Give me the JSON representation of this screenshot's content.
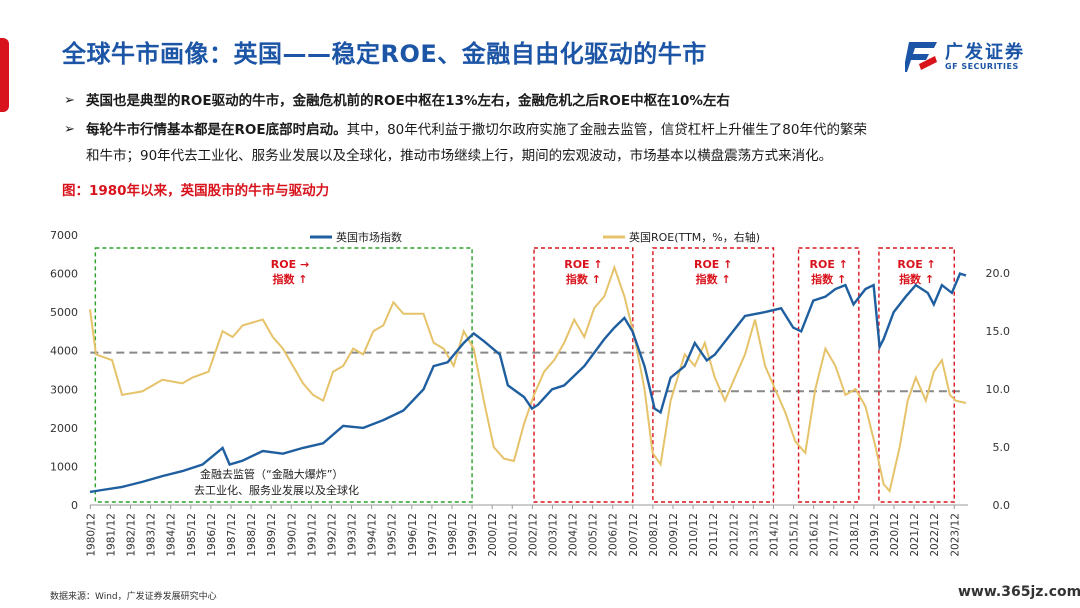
{
  "title": "全球牛市画像：英国——稳定ROE、金融自由化驱动的牛市",
  "logo": {
    "cn": "广发证券",
    "en": "GF SECURITIES"
  },
  "bullets": [
    {
      "bold": "英国也是典型的ROE驱动的牛市，金融危机前的ROE中枢在13%左右，金融危机之后ROE中枢在10%左右",
      "text": ""
    },
    {
      "bold": "每轮牛市行情基本都是在ROE底部时启动。",
      "text": "其中，80年代利益于撒切尔政府实施了金融去监管，信贷杠杆上升催生了80年代的繁荣",
      "text2": "和牛市；90年代去工业化、服务业发展以及全球化，推动市场继续上行，期间的宏观波动，市场基本以横盘震荡方式来消化。"
    }
  ],
  "figure_caption": "图：1980年以来，英国股市的牛市与驱动力",
  "source": "数据来源：Wind，广发证券发展研究中心",
  "watermark": "www.365jz.com",
  "colors": {
    "index": "#1f5fa0",
    "roe": "#e6c36a",
    "box": "#d8131c",
    "green": "#2aa22a",
    "ref": "#888888"
  },
  "chart_data": {
    "type": "line",
    "legend_placement": "top-center",
    "legend": [
      "英国市场指数",
      "英国ROE(TTM，%，右轴)"
    ],
    "x_ticks": [
      "1980/12",
      "1981/12",
      "1982/12",
      "1983/12",
      "1984/12",
      "1985/12",
      "1986/12",
      "1987/12",
      "1988/12",
      "1989/12",
      "1990/12",
      "1991/12",
      "1992/12",
      "1993/12",
      "1994/12",
      "1995/12",
      "1996/12",
      "1997/12",
      "1998/12",
      "1999/12",
      "2000/12",
      "2001/12",
      "2002/12",
      "2003/12",
      "2004/12",
      "2005/12",
      "2006/12",
      "2007/12",
      "2008/12",
      "2009/12",
      "2010/12",
      "2011/12",
      "2012/12",
      "2013/12",
      "2014/12",
      "2015/12",
      "2016/12",
      "2017/12",
      "2018/12",
      "2019/12",
      "2020/12",
      "2021/12",
      "2022/12",
      "2023/12"
    ],
    "y_left": {
      "range": [
        0,
        7000
      ],
      "ticks": [
        "0",
        "1000",
        "2000",
        "3000",
        "4000",
        "5000",
        "6000",
        "7000"
      ]
    },
    "y_right": {
      "range": [
        0,
        23.3
      ],
      "ticks": [
        "0.0",
        "5.0",
        "10.0",
        "15.0",
        "20.0"
      ]
    },
    "series": [
      {
        "name": "英国市场指数",
        "axis": "left",
        "points": [
          [
            1980.9,
            340
          ],
          [
            1981.5,
            390
          ],
          [
            1982.5,
            470
          ],
          [
            1983.5,
            600
          ],
          [
            1984.5,
            750
          ],
          [
            1985.5,
            880
          ],
          [
            1986.5,
            1050
          ],
          [
            1987.5,
            1480
          ],
          [
            1987.85,
            1050
          ],
          [
            1988.5,
            1150
          ],
          [
            1989.5,
            1400
          ],
          [
            1990.5,
            1330
          ],
          [
            1991.5,
            1480
          ],
          [
            1992.5,
            1600
          ],
          [
            1993.5,
            2050
          ],
          [
            1994.5,
            2000
          ],
          [
            1995.5,
            2200
          ],
          [
            1996.5,
            2450
          ],
          [
            1997.5,
            3000
          ],
          [
            1998.0,
            3600
          ],
          [
            1998.7,
            3700
          ],
          [
            1999.5,
            4200
          ],
          [
            2000.0,
            4450
          ],
          [
            2000.5,
            4250
          ],
          [
            2001.3,
            3900
          ],
          [
            2001.7,
            3100
          ],
          [
            2002.5,
            2800
          ],
          [
            2002.9,
            2500
          ],
          [
            2003.2,
            2600
          ],
          [
            2003.9,
            3000
          ],
          [
            2004.5,
            3100
          ],
          [
            2005.5,
            3600
          ],
          [
            2006.5,
            4300
          ],
          [
            2007.0,
            4600
          ],
          [
            2007.5,
            4850
          ],
          [
            2007.9,
            4500
          ],
          [
            2008.5,
            3600
          ],
          [
            2009.0,
            2500
          ],
          [
            2009.3,
            2400
          ],
          [
            2009.8,
            3300
          ],
          [
            2010.5,
            3600
          ],
          [
            2011.0,
            4200
          ],
          [
            2011.6,
            3750
          ],
          [
            2012.0,
            3900
          ],
          [
            2012.6,
            4300
          ],
          [
            2013.5,
            4900
          ],
          [
            2014.5,
            5000
          ],
          [
            2015.3,
            5100
          ],
          [
            2015.9,
            4600
          ],
          [
            2016.3,
            4500
          ],
          [
            2016.9,
            5300
          ],
          [
            2017.5,
            5400
          ],
          [
            2018.0,
            5600
          ],
          [
            2018.5,
            5700
          ],
          [
            2018.9,
            5200
          ],
          [
            2019.5,
            5600
          ],
          [
            2019.9,
            5700
          ],
          [
            2020.2,
            4100
          ],
          [
            2020.4,
            4300
          ],
          [
            2020.9,
            5000
          ],
          [
            2021.5,
            5400
          ],
          [
            2022.0,
            5700
          ],
          [
            2022.6,
            5500
          ],
          [
            2022.9,
            5200
          ],
          [
            2023.3,
            5700
          ],
          [
            2023.8,
            5500
          ],
          [
            2024.2,
            6000
          ],
          [
            2024.5,
            5950
          ]
        ]
      },
      {
        "name": "英国ROE(TTM，%，右轴)",
        "axis": "right",
        "points": [
          [
            1980.9,
            16.9
          ],
          [
            1981.2,
            13.0
          ],
          [
            1982.0,
            12.5
          ],
          [
            1982.5,
            9.5
          ],
          [
            1983.5,
            9.8
          ],
          [
            1984.0,
            10.3
          ],
          [
            1984.5,
            10.8
          ],
          [
            1985.5,
            10.5
          ],
          [
            1986.0,
            11.0
          ],
          [
            1986.8,
            11.5
          ],
          [
            1987.5,
            15.0
          ],
          [
            1988.0,
            14.5
          ],
          [
            1988.5,
            15.5
          ],
          [
            1989.5,
            16.0
          ],
          [
            1990.0,
            14.5
          ],
          [
            1990.5,
            13.5
          ],
          [
            1991.0,
            12.0
          ],
          [
            1991.5,
            10.5
          ],
          [
            1992.0,
            9.5
          ],
          [
            1992.5,
            9.0
          ],
          [
            1993.0,
            11.5
          ],
          [
            1993.5,
            12.0
          ],
          [
            1994.0,
            13.5
          ],
          [
            1994.5,
            13.0
          ],
          [
            1995.0,
            15.0
          ],
          [
            1995.5,
            15.5
          ],
          [
            1996.0,
            17.5
          ],
          [
            1996.5,
            16.5
          ],
          [
            1997.5,
            16.5
          ],
          [
            1998.0,
            14.0
          ],
          [
            1998.5,
            13.5
          ],
          [
            1999.0,
            12.0
          ],
          [
            1999.5,
            15.0
          ],
          [
            2000.0,
            13.5
          ],
          [
            2000.5,
            9.0
          ],
          [
            2001.0,
            5.0
          ],
          [
            2001.5,
            4.0
          ],
          [
            2002.0,
            3.8
          ],
          [
            2002.5,
            7.0
          ],
          [
            2003.0,
            9.5
          ],
          [
            2003.5,
            11.5
          ],
          [
            2004.0,
            12.5
          ],
          [
            2004.5,
            14.0
          ],
          [
            2005.0,
            16.0
          ],
          [
            2005.5,
            14.5
          ],
          [
            2006.0,
            17.0
          ],
          [
            2006.5,
            18.0
          ],
          [
            2007.0,
            20.5
          ],
          [
            2007.5,
            18.0
          ],
          [
            2008.0,
            14.5
          ],
          [
            2008.5,
            10.0
          ],
          [
            2008.9,
            4.5
          ],
          [
            2009.3,
            3.5
          ],
          [
            2009.8,
            9.0
          ],
          [
            2010.5,
            13.0
          ],
          [
            2011.0,
            12.0
          ],
          [
            2011.5,
            14.0
          ],
          [
            2012.0,
            11.0
          ],
          [
            2012.5,
            9.0
          ],
          [
            2013.0,
            11.0
          ],
          [
            2013.5,
            13.0
          ],
          [
            2014.0,
            16.0
          ],
          [
            2014.5,
            12.0
          ],
          [
            2015.0,
            10.0
          ],
          [
            2015.5,
            8.0
          ],
          [
            2016.0,
            5.5
          ],
          [
            2016.5,
            4.5
          ],
          [
            2017.0,
            10.0
          ],
          [
            2017.5,
            13.5
          ],
          [
            2018.0,
            12.0
          ],
          [
            2018.5,
            9.5
          ],
          [
            2019.0,
            10.0
          ],
          [
            2019.5,
            8.5
          ],
          [
            2020.0,
            5.0
          ],
          [
            2020.4,
            1.8
          ],
          [
            2020.7,
            1.2
          ],
          [
            2021.2,
            5.0
          ],
          [
            2021.6,
            9.0
          ],
          [
            2022.0,
            11.0
          ],
          [
            2022.5,
            9.0
          ],
          [
            2022.9,
            11.5
          ],
          [
            2023.3,
            12.5
          ],
          [
            2023.7,
            9.5
          ],
          [
            2024.0,
            9.0
          ],
          [
            2024.5,
            8.8
          ]
        ]
      }
    ],
    "reference_lines": [
      {
        "axis": "left",
        "value": 3950,
        "from": "1980/12",
        "to": "2008/12"
      },
      {
        "axis": "left",
        "value": 2950,
        "from": "2008/12",
        "to": "2024/06"
      }
    ],
    "bull_periods": [
      {
        "from": "1981/03",
        "to": "1999/12",
        "style": "green",
        "annotation": [
          "金融去监管（“金融大爆炸”）",
          "去工业化、服务业发展以及全球化"
        ]
      },
      {
        "from": "2003/01",
        "to": "2007/12",
        "style": "red",
        "label1": "ROE ↑",
        "label2": "指数 ↑"
      },
      {
        "from": "2008/12",
        "to": "2014/12",
        "style": "red",
        "label1": "ROE ↑",
        "label2": "指数 ↑"
      },
      {
        "from": "2016/03",
        "to": "2019/03",
        "style": "red",
        "label1": "ROE ↑",
        "label2": "指数 ↑"
      },
      {
        "from": "2020/03",
        "to": "2023/12",
        "style": "red",
        "label1": "ROE ↑",
        "label2": "指数 ↑"
      }
    ],
    "first_box_label": {
      "label1": "ROE →",
      "label2": "指数 ↑"
    }
  }
}
